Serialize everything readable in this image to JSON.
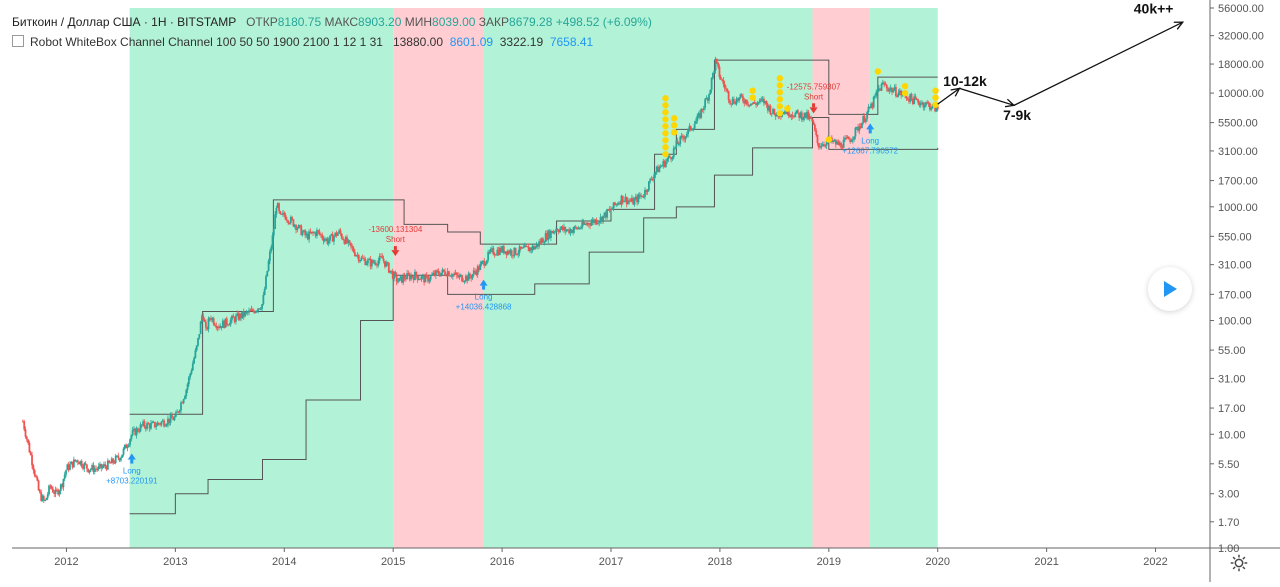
{
  "header": {
    "symbol": "Биткоин / Доллар США · 1Н · BITSTAMP",
    "open_label": "ОТКР",
    "open_value": "8180.75",
    "high_label": "МАКС",
    "high_value": "8903.20",
    "low_label": "МИН",
    "low_value": "8039.00",
    "close_label": "ЗАКР",
    "close_value": "8679.28",
    "change": "+498.52 (+6.09%)"
  },
  "indicator": {
    "name": "Robot WhiteBox Channel Channel 100 50 50 1900 2100 1 12 1 31",
    "v1": "13880.00",
    "v2": "8601.09",
    "v3": "3322.19",
    "v4": "7658.41"
  },
  "colors": {
    "long_zone": "#b2f2d6",
    "short_zone": "#ffcdd2",
    "up_candle": "#26a69a",
    "down_candle": "#ef5350",
    "channel": "#555555",
    "long_signal": "#2196f3",
    "short_signal": "#e53935",
    "dots": "#ffd600"
  },
  "icons": {
    "play": "play-icon",
    "settings": "gear-icon"
  },
  "chart_data": {
    "type": "line",
    "y_scale": "log",
    "ylim": [
      1.0,
      56000
    ],
    "xlim": [
      2011.5,
      2022.5
    ],
    "y_ticks": [
      "56000.00",
      "32000.00",
      "18000.00",
      "10000.00",
      "5500.00",
      "3100.00",
      "1700.00",
      "1000.00",
      "550.00",
      "310.00",
      "170.00",
      "100.00",
      "55.00",
      "31.00",
      "17.00",
      "10.00",
      "5.50",
      "3.00",
      "1.70",
      "1.00"
    ],
    "x_ticks": [
      "2012",
      "2013",
      "2014",
      "2015",
      "2016",
      "2017",
      "2018",
      "2019",
      "2020",
      "2021",
      "2022"
    ],
    "zones": [
      {
        "type": "long",
        "from": 2012.58,
        "to": 2015.0
      },
      {
        "type": "short",
        "from": 2015.0,
        "to": 2015.83
      },
      {
        "type": "long",
        "from": 2015.83,
        "to": 2018.85
      },
      {
        "type": "short",
        "from": 2018.85,
        "to": 2019.37
      },
      {
        "type": "long",
        "from": 2019.37,
        "to": 2020.0
      }
    ],
    "series": [
      {
        "name": "price",
        "x": [
          2011.6,
          2011.65,
          2011.7,
          2011.75,
          2011.8,
          2011.85,
          2011.9,
          2011.95,
          2012.0,
          2012.1,
          2012.2,
          2012.3,
          2012.4,
          2012.5,
          2012.55,
          2012.6,
          2012.7,
          2012.8,
          2012.9,
          2013.0,
          2013.1,
          2013.2,
          2013.25,
          2013.28,
          2013.32,
          2013.35,
          2013.4,
          2013.5,
          2013.6,
          2013.7,
          2013.8,
          2013.85,
          2013.9,
          2013.93,
          2013.96,
          2014.0,
          2014.1,
          2014.2,
          2014.3,
          2014.4,
          2014.5,
          2014.6,
          2014.7,
          2014.8,
          2014.9,
          2015.0,
          2015.05,
          2015.1,
          2015.2,
          2015.3,
          2015.4,
          2015.5,
          2015.6,
          2015.7,
          2015.8,
          2015.9,
          2016.0,
          2016.1,
          2016.2,
          2016.3,
          2016.4,
          2016.5,
          2016.6,
          2016.7,
          2016.8,
          2016.9,
          2017.0,
          2017.1,
          2017.2,
          2017.3,
          2017.4,
          2017.5,
          2017.55,
          2017.6,
          2017.7,
          2017.8,
          2017.9,
          2017.96,
          2018.0,
          2018.05,
          2018.1,
          2018.2,
          2018.3,
          2018.4,
          2018.5,
          2018.6,
          2018.7,
          2018.8,
          2018.85,
          2018.9,
          2019.0,
          2019.1,
          2019.2,
          2019.3,
          2019.4,
          2019.45,
          2019.5,
          2019.55,
          2019.6,
          2019.7,
          2019.8,
          2019.9,
          2020.0
        ],
        "y": [
          13,
          8,
          5,
          3,
          2.5,
          3.5,
          3,
          3.5,
          5,
          6,
          5,
          5,
          5.5,
          6.5,
          8,
          10,
          12,
          12,
          13,
          14,
          25,
          60,
          120,
          80,
          110,
          100,
          90,
          100,
          110,
          120,
          140,
          300,
          600,
          1100,
          800,
          850,
          700,
          550,
          600,
          500,
          600,
          450,
          350,
          320,
          350,
          250,
          220,
          240,
          250,
          230,
          260,
          270,
          240,
          240,
          300,
          400,
          420,
          400,
          420,
          440,
          550,
          650,
          620,
          650,
          730,
          780,
          950,
          1200,
          1100,
          1300,
          2000,
          2500,
          2800,
          3500,
          4500,
          6000,
          10000,
          19000,
          14000,
          11000,
          8500,
          9000,
          8000,
          8500,
          6500,
          7000,
          6500,
          6300,
          5500,
          3500,
          3800,
          3500,
          4000,
          5500,
          8000,
          10500,
          12000,
          11000,
          10500,
          9500,
          8500,
          8000,
          7200
        ]
      },
      {
        "name": "upper",
        "x": [
          2012.58,
          2013.0,
          2013.25,
          2013.9,
          2014.9,
          2015.1,
          2015.5,
          2015.8,
          2016.5,
          2017.0,
          2017.4,
          2017.6,
          2017.95,
          2018.9,
          2019.0,
          2019.35,
          2019.45,
          2020.0
        ],
        "y": [
          15,
          15,
          120,
          1150,
          1150,
          700,
          600,
          470,
          750,
          950,
          2900,
          4800,
          19500,
          19500,
          6500,
          6500,
          13800,
          13800
        ]
      },
      {
        "name": "lower",
        "x": [
          2012.58,
          2013.0,
          2013.3,
          2013.8,
          2014.2,
          2014.7,
          2015.0,
          2015.5,
          2015.8,
          2016.3,
          2016.8,
          2017.3,
          2017.6,
          2017.95,
          2018.3,
          2018.85,
          2019.0,
          2019.2,
          2020.0
        ],
        "y": [
          2,
          3,
          4,
          6,
          20,
          100,
          250,
          170,
          170,
          210,
          400,
          800,
          1000,
          1900,
          3300,
          6100,
          3200,
          3200,
          3300
        ]
      }
    ],
    "signals": [
      {
        "type": "long",
        "label": "Long",
        "value": "+8703.220191",
        "x": 2012.6,
        "y": 6.5
      },
      {
        "type": "short",
        "label": "Short",
        "value": "-13600.131304",
        "x": 2015.02,
        "y": 400
      },
      {
        "type": "long",
        "label": "Long",
        "value": "+14036.428868",
        "x": 2015.83,
        "y": 220
      },
      {
        "type": "short",
        "label": "Short",
        "value": "-12575.759307",
        "x": 2018.86,
        "y": 7200
      },
      {
        "type": "long",
        "label": "Long",
        "value": "+12667.790572",
        "x": 2019.38,
        "y": 5200
      }
    ],
    "annotations": [
      {
        "text": "10-12k",
        "x": 2020.05,
        "y": 11500
      },
      {
        "text": "7-9k",
        "x": 2020.6,
        "y": 5800
      },
      {
        "text": "40k++",
        "x": 2021.8,
        "y": 50000
      }
    ],
    "projection": {
      "x": [
        2020.0,
        2020.2,
        2020.7,
        2022.25
      ],
      "y": [
        8000,
        11000,
        7800,
        42000
      ]
    },
    "dots": [
      {
        "x": 2017.5,
        "low": 2800,
        "high": 9000
      },
      {
        "x": 2017.58,
        "low": 4200,
        "high": 6000
      },
      {
        "x": 2018.3,
        "low": 8500,
        "high": 10500
      },
      {
        "x": 2018.55,
        "low": 6500,
        "high": 13500
      },
      {
        "x": 2018.62,
        "low": 7000,
        "high": 7300
      },
      {
        "x": 2019.0,
        "low": 3700,
        "high": 3900
      },
      {
        "x": 2019.45,
        "low": 15000,
        "high": 15500
      },
      {
        "x": 2019.7,
        "low": 9000,
        "high": 11500
      },
      {
        "x": 2019.98,
        "low": 7800,
        "high": 10500
      }
    ]
  }
}
